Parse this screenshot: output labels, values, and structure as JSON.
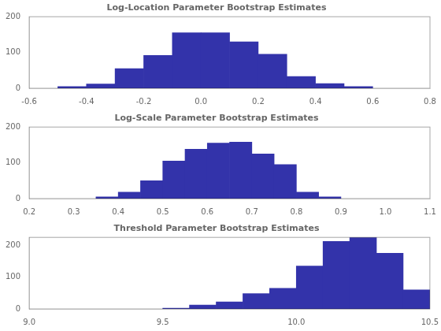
{
  "chart_data": [
    {
      "type": "histogram",
      "title": "Log-Location Parameter Bootstrap Estimates",
      "bins": [
        -0.5,
        -0.4,
        -0.3,
        -0.2,
        -0.1,
        0.0,
        0.1,
        0.2,
        0.3,
        0.4,
        0.5,
        0.6
      ],
      "values": [
        5,
        12,
        55,
        92,
        155,
        155,
        130,
        95,
        33,
        13,
        5
      ],
      "color": "#3333AA",
      "xlim": [
        -0.6,
        0.8
      ],
      "xticks": [
        -0.6,
        -0.4,
        -0.2,
        {
          "value": 0,
          "label": "0.0"
        },
        0.2,
        0.4,
        0.6,
        0.8
      ],
      "ylim": [
        0,
        200
      ],
      "yticks": [
        0,
        100,
        200
      ],
      "grid": false
    },
    {
      "type": "histogram",
      "title": "Log-Scale Parameter Bootstrap Estimates",
      "bins": [
        0.35,
        0.4,
        0.45,
        0.5,
        0.55,
        0.6,
        0.65,
        0.7,
        0.75,
        0.8,
        0.85,
        0.9
      ],
      "values": [
        5,
        18,
        50,
        105,
        138,
        155,
        158,
        125,
        95,
        18,
        5
      ],
      "color": "#3333AA",
      "xlim": [
        0.2,
        1.1
      ],
      "xticks": [
        0.2,
        0.3,
        0.4,
        0.5,
        0.6,
        0.7,
        0.8,
        0.9,
        {
          "value": 1,
          "label": "1.0"
        },
        1.1
      ],
      "ylim": [
        0,
        200
      ],
      "yticks": [
        0,
        100,
        200
      ],
      "grid": false
    },
    {
      "type": "histogram",
      "title": "Threshold Parameter Bootstrap Estimates",
      "bins": [
        9.5,
        9.6,
        9.7,
        9.8,
        9.9,
        10.0,
        10.1,
        10.2,
        10.3,
        10.4,
        10.5
      ],
      "values": [
        2,
        12,
        22,
        48,
        65,
        135,
        212,
        225,
        175,
        60
      ],
      "color": "#3333AA",
      "xlim": [
        9,
        10.5
      ],
      "xticks": [
        {
          "value": 9,
          "label": "9.0"
        },
        9.5,
        {
          "value": 10,
          "label": "10.0"
        },
        10.5
      ],
      "ylim": [
        0,
        225
      ],
      "yticks": [
        0,
        100,
        200
      ],
      "grid": false
    }
  ]
}
